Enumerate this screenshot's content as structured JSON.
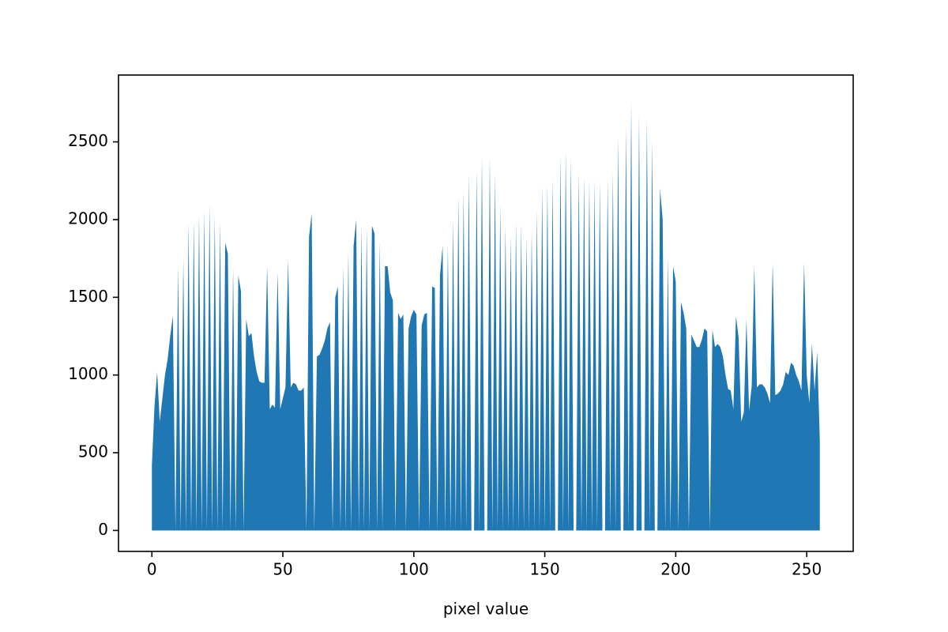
{
  "chart_data": {
    "type": "area",
    "xlabel": "pixel value",
    "color": "#1f77b4",
    "xlim": [
      -12.75,
      267.75
    ],
    "ylim": [
      -135,
      2930
    ],
    "xticks": [
      0,
      50,
      100,
      150,
      200,
      250
    ],
    "yticks": [
      0,
      500,
      1000,
      1500,
      2000,
      2500
    ],
    "x": [
      0,
      1,
      2,
      3,
      4,
      5,
      6,
      7,
      8,
      9,
      10,
      11,
      12,
      13,
      14,
      15,
      16,
      17,
      18,
      19,
      20,
      21,
      22,
      23,
      24,
      25,
      26,
      27,
      28,
      29,
      30,
      31,
      32,
      33,
      34,
      35,
      36,
      37,
      38,
      39,
      40,
      41,
      42,
      43,
      44,
      45,
      46,
      47,
      48,
      49,
      50,
      51,
      52,
      53,
      54,
      55,
      56,
      57,
      58,
      59,
      60,
      61,
      62,
      63,
      64,
      65,
      66,
      67,
      68,
      69,
      70,
      71,
      72,
      73,
      74,
      75,
      76,
      77,
      78,
      79,
      80,
      81,
      82,
      83,
      84,
      85,
      86,
      87,
      88,
      89,
      90,
      91,
      92,
      93,
      94,
      95,
      96,
      97,
      98,
      99,
      100,
      101,
      102,
      103,
      104,
      105,
      106,
      107,
      108,
      109,
      110,
      111,
      112,
      113,
      114,
      115,
      116,
      117,
      118,
      119,
      120,
      121,
      122,
      123,
      124,
      125,
      126,
      127,
      128,
      129,
      130,
      131,
      132,
      133,
      134,
      135,
      136,
      137,
      138,
      139,
      140,
      141,
      142,
      143,
      144,
      145,
      146,
      147,
      148,
      149,
      150,
      151,
      152,
      153,
      154,
      155,
      156,
      157,
      158,
      159,
      160,
      161,
      162,
      163,
      164,
      165,
      166,
      167,
      168,
      169,
      170,
      171,
      172,
      173,
      174,
      175,
      176,
      177,
      178,
      179,
      180,
      181,
      182,
      183,
      184,
      185,
      186,
      187,
      188,
      189,
      190,
      191,
      192,
      193,
      194,
      195,
      196,
      197,
      198,
      199,
      200,
      201,
      202,
      203,
      204,
      205,
      206,
      207,
      208,
      209,
      210,
      211,
      212,
      213,
      214,
      215,
      216,
      217,
      218,
      219,
      220,
      221,
      222,
      223,
      224,
      225,
      226,
      227,
      228,
      229,
      230,
      231,
      232,
      233,
      234,
      235,
      236,
      237,
      238,
      239,
      240,
      241,
      242,
      243,
      244,
      245,
      246,
      247,
      248,
      249,
      250,
      251,
      252,
      253,
      254,
      255
    ],
    "values": [
      420,
      800,
      1020,
      700,
      850,
      1000,
      1100,
      1250,
      1380,
      0,
      1700,
      0,
      1750,
      0,
      1980,
      0,
      1990,
      0,
      2030,
      0,
      2060,
      0,
      2100,
      0,
      2030,
      0,
      1990,
      0,
      1850,
      1780,
      0,
      1690,
      0,
      1640,
      1540,
      0,
      1360,
      1250,
      1270,
      1120,
      1020,
      960,
      950,
      950,
      1700,
      780,
      810,
      790,
      1660,
      780,
      850,
      920,
      1740,
      920,
      950,
      940,
      900,
      900,
      920,
      0,
      1890,
      2040,
      0,
      1120,
      1130,
      1170,
      1220,
      1300,
      1340,
      0,
      1500,
      1570,
      0,
      1700,
      0,
      1790,
      0,
      1830,
      2000,
      0,
      1960,
      0,
      1950,
      0,
      1960,
      1910,
      0,
      1860,
      0,
      1700,
      1700,
      1530,
      1480,
      0,
      1400,
      1360,
      1390,
      0,
      1300,
      1380,
      1420,
      1390,
      0,
      1320,
      1390,
      1400,
      0,
      1570,
      1560,
      0,
      1640,
      1830,
      0,
      1840,
      0,
      2000,
      0,
      2150,
      0,
      2180,
      0,
      2290,
      0,
      0,
      2320,
      0,
      2400,
      0,
      0,
      2400,
      0,
      2300,
      0,
      2100,
      0,
      1960,
      0,
      1900,
      0,
      1980,
      0,
      1970,
      0,
      1890,
      0,
      1930,
      0,
      2060,
      0,
      2210,
      0,
      2220,
      0,
      2260,
      0,
      0,
      2410,
      0,
      2440,
      0,
      2400,
      0,
      0,
      2300,
      0,
      2280,
      0,
      2250,
      0,
      2250,
      0,
      2240,
      0,
      0,
      2260,
      0,
      2300,
      0,
      2530,
      0,
      0,
      2600,
      0,
      2760,
      0,
      0,
      2670,
      0,
      0,
      2650,
      0,
      2520,
      0,
      0,
      2200,
      2000,
      0,
      1760,
      0,
      1700,
      1600,
      0,
      1470,
      1400,
      1300,
      0,
      1260,
      1220,
      1180,
      1180,
      1230,
      1300,
      1280,
      0,
      1290,
      1180,
      1200,
      1180,
      1120,
      1000,
      910,
      900,
      780,
      1380,
      1240,
      700,
      760,
      1360,
      770,
      930,
      1700,
      920,
      940,
      940,
      920,
      880,
      820,
      1720,
      870,
      880,
      900,
      940,
      1020,
      1000,
      1080,
      1060,
      1000,
      960,
      900,
      1720,
      1000,
      820,
      1200,
      900,
      1150,
      580
    ]
  }
}
